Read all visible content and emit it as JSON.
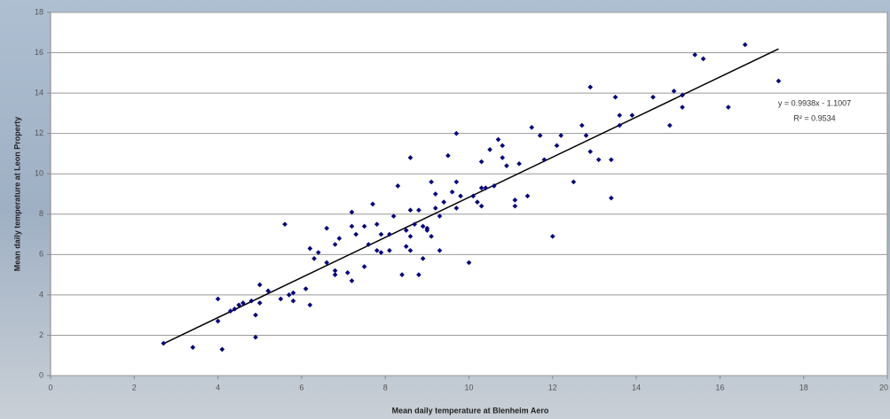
{
  "chart_data": {
    "type": "scatter",
    "x_label": "Mean daily temperature at Blenheim Aero",
    "y_label": "Mean daily temperature at Leon Property",
    "color": "#000080",
    "xlim": [
      0,
      20
    ],
    "xticks": [
      0,
      2,
      4,
      6,
      8,
      10,
      12,
      14,
      16,
      18,
      20
    ],
    "ylim": [
      0,
      18
    ],
    "yticks": [
      0,
      2,
      4,
      6,
      8,
      10,
      12,
      14,
      16,
      18
    ],
    "grid": true,
    "trendline": {
      "slope": 0.9938,
      "intercept": -1.1007,
      "color": "#000000",
      "label": "y = 0.9938x - 1.1007",
      "r2_label": "R² = 0.9534"
    },
    "x": [
      2.7,
      3.4,
      4.1,
      4.0,
      4.0,
      4.3,
      4.4,
      4.5,
      4.6,
      4.8,
      4.9,
      4.9,
      5.0,
      5.0,
      5.2,
      5.5,
      5.6,
      5.7,
      5.8,
      5.8,
      6.1,
      6.2,
      6.2,
      6.3,
      6.4,
      6.6,
      6.6,
      6.8,
      6.8,
      6.8,
      6.9,
      7.1,
      7.2,
      7.2,
      7.2,
      7.3,
      7.5,
      7.5,
      7.6,
      7.7,
      7.8,
      7.8,
      7.9,
      7.9,
      8.1,
      8.1,
      8.2,
      8.3,
      8.4,
      8.5,
      8.5,
      8.6,
      8.6,
      8.6,
      8.6,
      8.7,
      8.8,
      8.8,
      8.9,
      8.9,
      9.0,
      9.0,
      9.1,
      9.1,
      9.2,
      9.2,
      9.3,
      9.3,
      9.4,
      9.5,
      9.6,
      9.7,
      9.7,
      9.7,
      9.8,
      10.0,
      10.1,
      10.2,
      10.3,
      10.3,
      10.3,
      10.4,
      10.5,
      10.6,
      10.7,
      10.8,
      10.8,
      10.9,
      11.1,
      11.1,
      11.2,
      11.4,
      11.5,
      11.7,
      11.8,
      12.0,
      12.1,
      12.2,
      12.5,
      12.7,
      12.8,
      12.9,
      12.9,
      13.1,
      13.4,
      13.4,
      13.5,
      13.6,
      13.6,
      13.9,
      14.4,
      14.8,
      14.9,
      15.1,
      15.1,
      15.4,
      15.6,
      16.2,
      16.6,
      17.4
    ],
    "values": [
      1.6,
      1.4,
      1.3,
      3.8,
      2.7,
      3.2,
      3.3,
      3.5,
      3.6,
      3.7,
      3.0,
      1.9,
      4.5,
      3.6,
      4.2,
      3.8,
      7.5,
      4.0,
      4.1,
      3.7,
      4.3,
      3.5,
      6.3,
      5.8,
      6.1,
      5.6,
      7.3,
      5.0,
      5.2,
      6.5,
      6.8,
      5.1,
      4.7,
      7.4,
      8.1,
      7.0,
      7.4,
      5.4,
      6.5,
      8.5,
      6.2,
      7.5,
      6.1,
      7.0,
      6.2,
      7.0,
      7.9,
      9.4,
      5.0,
      7.2,
      6.4,
      6.9,
      6.2,
      10.8,
      8.2,
      7.5,
      5.0,
      8.2,
      7.4,
      5.8,
      7.2,
      7.3,
      6.9,
      9.6,
      8.3,
      9.0,
      6.2,
      7.9,
      8.6,
      10.9,
      9.1,
      12.0,
      9.6,
      8.3,
      8.9,
      5.6,
      8.9,
      8.6,
      8.4,
      9.3,
      10.6,
      9.3,
      11.2,
      9.4,
      11.7,
      10.8,
      11.4,
      10.4,
      8.4,
      8.7,
      10.5,
      8.9,
      12.3,
      11.9,
      10.7,
      6.9,
      11.4,
      11.9,
      9.6,
      12.4,
      11.9,
      14.3,
      11.1,
      10.7,
      10.7,
      8.8,
      13.8,
      12.9,
      12.4,
      12.9,
      13.8,
      12.4,
      14.1,
      13.3,
      13.9,
      15.9,
      15.7,
      13.3,
      16.4,
      14.6
    ]
  }
}
